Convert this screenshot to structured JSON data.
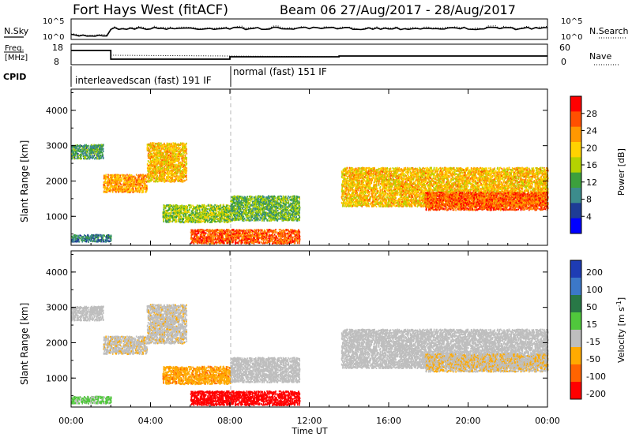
{
  "header": {
    "title": "Fort Hays West (fitACF)",
    "subtitle": "Beam 06 27/Aug/2017 - 28/Aug/2017"
  },
  "strip_nsky": {
    "left_label": "N.Sky",
    "right_label": "N.Search",
    "left_ticks": [
      "10^5",
      "10^0"
    ],
    "right_ticks": [
      "10^5",
      "10^0"
    ]
  },
  "strip_freq": {
    "left_label_line1": "Freq.",
    "left_label_line2": "[MHz]",
    "right_label": "Nave",
    "left_ticks": [
      "18",
      "8"
    ],
    "right_ticks": [
      "60",
      "0"
    ]
  },
  "cpid": {
    "label": "CPID",
    "segments": [
      {
        "name": "interleavedscan (fast) 191 IF",
        "start_hour": 0,
        "end_hour": 8
      },
      {
        "name": "normal (fast) 151 IF",
        "start_hour": 8,
        "end_hour": 24
      }
    ]
  },
  "axes": {
    "ylabel": "Slant Range [km]",
    "xlabel": "Time UT",
    "x_ticks": [
      "00:00",
      "04:00",
      "08:00",
      "12:00",
      "16:00",
      "20:00",
      "00:00"
    ],
    "y_ticks": [
      "1000",
      "2000",
      "3000",
      "4000"
    ],
    "xlim_hours": [
      0,
      24
    ],
    "ylim_km": [
      180,
      4600
    ]
  },
  "power_colorbar": {
    "label": "Power [dB]",
    "ticks": [
      "28",
      "24",
      "20",
      "16",
      "12",
      "8",
      "4"
    ],
    "colors": [
      "#ff0000",
      "#ff5000",
      "#ff9800",
      "#ffd200",
      "#b4d200",
      "#3ca03c",
      "#3c8c8c",
      "#1e3c96",
      "#0000ff"
    ]
  },
  "velocity_colorbar": {
    "label": "Velocity [m s",
    "label_sup": "-1",
    "label_end": "]",
    "ticks": [
      "200",
      "100",
      "50",
      "15",
      "-15",
      "-50",
      "-100",
      "-200"
    ],
    "colors": [
      "#1e3cb4",
      "#3c78c8",
      "#287846",
      "#50c83c",
      "#bebebe",
      "#ffaa00",
      "#ff6400",
      "#ff0000"
    ]
  },
  "chart_data": {
    "type": "heatmap",
    "panels": [
      "Power [dB]",
      "Velocity [m s-1]"
    ],
    "x_unit": "hours UT",
    "y_unit": "km",
    "regions": [
      {
        "t0": 0.0,
        "t1": 1.6,
        "r0": 2650,
        "r1": 3050,
        "power": 10,
        "velocity": 0
      },
      {
        "t0": 1.6,
        "t1": 3.8,
        "r0": 1700,
        "r1": 2200,
        "power": 22,
        "velocity": -5
      },
      {
        "t0": 3.8,
        "t1": 5.8,
        "r0": 2000,
        "r1": 3100,
        "power": 20,
        "velocity": -5
      },
      {
        "t0": 4.6,
        "t1": 8.0,
        "r0": 850,
        "r1": 1350,
        "power": 14,
        "velocity": -40
      },
      {
        "t0": 6.0,
        "t1": 11.5,
        "r0": 250,
        "r1": 650,
        "power": 26,
        "velocity": -150
      },
      {
        "t0": 8.0,
        "t1": 11.5,
        "r0": 900,
        "r1": 1600,
        "power": 12,
        "velocity": 0
      },
      {
        "t0": 0.0,
        "t1": 2.0,
        "r0": 300,
        "r1": 500,
        "power": 8,
        "velocity": 20
      },
      {
        "t0": 13.6,
        "t1": 24.0,
        "r0": 1300,
        "r1": 2400,
        "power": 20,
        "velocity": 0
      },
      {
        "t0": 17.8,
        "t1": 24.0,
        "r0": 1200,
        "r1": 1700,
        "power": 26,
        "velocity": -10
      }
    ]
  }
}
